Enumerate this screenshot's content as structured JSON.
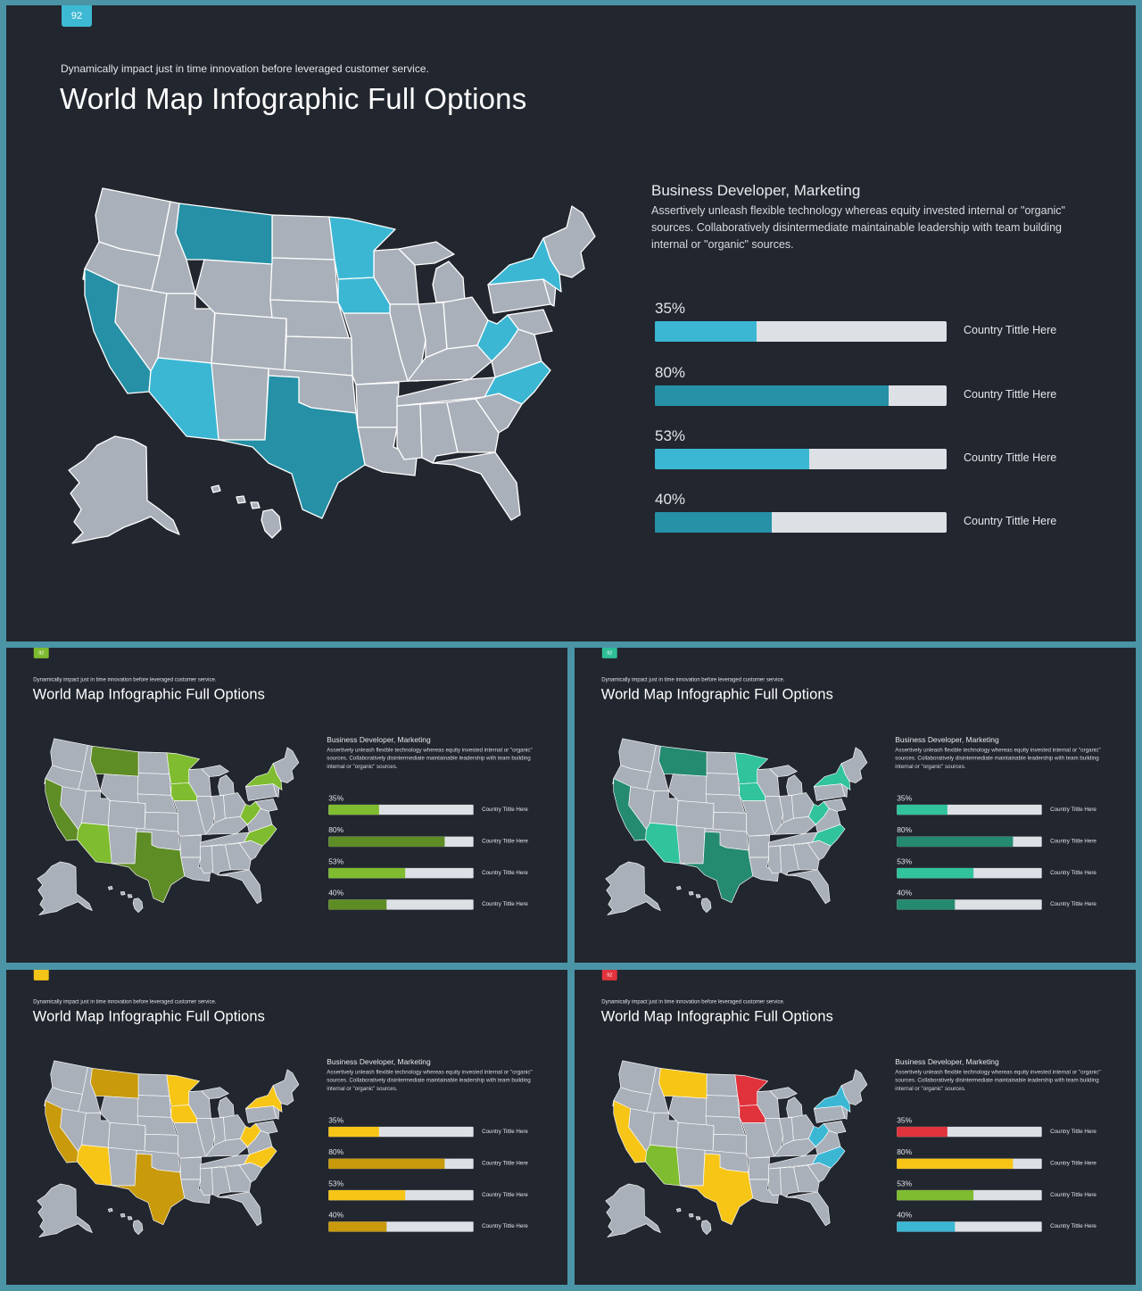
{
  "slides": [
    {
      "badge": "92",
      "badge_color": "#3db9d3",
      "subtitle": "Dynamically impact just in time innovation  before leveraged customer service.",
      "title": "World Map Infographic Full Options",
      "heading": "Business  Developer, Marketing",
      "body": "Assertively unleash flexible technology whereas equity  invested internal or \"organic\" sources. Collaboratively disintermediate maintainable  leadership with team building internal or \"organic\" sources.",
      "map_colors": {
        "primary": "#2590a6",
        "secondary": "#3bb7d4",
        "tertiary": "#3bb7d4",
        "quaternary": "#3bb7d4"
      },
      "stats": [
        {
          "percent": "35%",
          "value": 0.35,
          "color": "#3bb7d4",
          "label": "Country Tittle Here"
        },
        {
          "percent": "80%",
          "value": 0.8,
          "color": "#2590a6",
          "label": "Country Tittle Here"
        },
        {
          "percent": "53%",
          "value": 0.53,
          "color": "#3bb7d4",
          "label": "Country Tittle Here"
        },
        {
          "percent": "40%",
          "value": 0.4,
          "color": "#2590a6",
          "label": "Country Tittle Here"
        }
      ]
    },
    {
      "badge": "92",
      "badge_color": "#7dbb2f",
      "subtitle": "Dynamically impact just in time innovation  before leveraged customer service.",
      "title": "World Map Infographic Full Options",
      "heading": "Business  Developer, Marketing",
      "body": "Assertively unleash flexible technology whereas equity  invested internal or \"organic\" sources. Collaboratively disintermediate maintainable  leadership with team building internal or \"organic\" sources.",
      "map_colors": {
        "primary": "#5e8c25",
        "secondary": "#7fbc2f",
        "tertiary": "#7fbc2f",
        "quaternary": "#7fbc2f"
      },
      "stats": [
        {
          "percent": "35%",
          "value": 0.35,
          "color": "#7fbc2f",
          "label": "Country Tittle Here"
        },
        {
          "percent": "80%",
          "value": 0.8,
          "color": "#5e8c25",
          "label": "Country Tittle Here"
        },
        {
          "percent": "53%",
          "value": 0.53,
          "color": "#7fbc2f",
          "label": "Country Tittle Here"
        },
        {
          "percent": "40%",
          "value": 0.4,
          "color": "#5e8c25",
          "label": "Country Tittle Here"
        }
      ]
    },
    {
      "badge": "92",
      "badge_color": "#2fbf97",
      "subtitle": "Dynamically impact just in time innovation  before leveraged customer service.",
      "title": "World Map Infographic Full Options",
      "heading": "Business  Developer, Marketing",
      "body": "Assertively unleash flexible technology whereas equity  invested internal or \"organic\" sources. Collaboratively disintermediate maintainable  leadership with team building internal or \"organic\" sources.",
      "map_colors": {
        "primary": "#248a70",
        "secondary": "#30c39c",
        "tertiary": "#30c39c",
        "quaternary": "#30c39c"
      },
      "stats": [
        {
          "percent": "35%",
          "value": 0.35,
          "color": "#30c39c",
          "label": "Country Tittle Here"
        },
        {
          "percent": "80%",
          "value": 0.8,
          "color": "#248a70",
          "label": "Country Tittle Here"
        },
        {
          "percent": "53%",
          "value": 0.53,
          "color": "#30c39c",
          "label": "Country Tittle Here"
        },
        {
          "percent": "40%",
          "value": 0.4,
          "color": "#248a70",
          "label": "Country Tittle Here"
        }
      ]
    },
    {
      "badge": "",
      "badge_color": "#f5c418",
      "subtitle": "Dynamically impact just in time innovation  before leveraged customer service.",
      "title": "World Map Infographic Full Options",
      "heading": "Business  Developer, Marketing",
      "body": "Assertively unleash flexible technology whereas equity  invested internal or \"organic\" sources. Collaboratively disintermediate maintainable  leadership with team building internal or \"organic\" sources.",
      "map_colors": {
        "primary": "#c89a0c",
        "secondary": "#f6c516",
        "tertiary": "#f6c516",
        "quaternary": "#f6c516"
      },
      "stats": [
        {
          "percent": "35%",
          "value": 0.35,
          "color": "#f6c516",
          "label": "Country Tittle Here"
        },
        {
          "percent": "80%",
          "value": 0.8,
          "color": "#c89a0c",
          "label": "Country Tittle Here"
        },
        {
          "percent": "53%",
          "value": 0.53,
          "color": "#f6c516",
          "label": "Country Tittle Here"
        },
        {
          "percent": "40%",
          "value": 0.4,
          "color": "#c89a0c",
          "label": "Country Tittle Here"
        }
      ]
    },
    {
      "badge": "92",
      "badge_color": "#e0333c",
      "subtitle": "Dynamically impact just in time innovation  before leveraged customer service.",
      "title": "World Map Infographic Full Options",
      "heading": "Business  Developer, Marketing",
      "body": "Assertively unleash flexible technology whereas equity  invested internal or \"organic\" sources. Collaboratively disintermediate maintainable  leadership with team building internal or \"organic\" sources.",
      "map_colors": {
        "primary": "#f6c516",
        "secondary": "#e0333c",
        "tertiary": "#3bb7d4",
        "quaternary": "#7fbc2f"
      },
      "stats": [
        {
          "percent": "35%",
          "value": 0.35,
          "color": "#e0333c",
          "label": "Country Tittle Here"
        },
        {
          "percent": "80%",
          "value": 0.8,
          "color": "#f6c516",
          "label": "Country Tittle Here"
        },
        {
          "percent": "53%",
          "value": 0.53,
          "color": "#7fbc2f",
          "label": "Country Tittle Here"
        },
        {
          "percent": "40%",
          "value": 0.4,
          "color": "#3bb7d4",
          "label": "Country Tittle Here"
        }
      ]
    }
  ],
  "map_base_color": "#aab0ba"
}
